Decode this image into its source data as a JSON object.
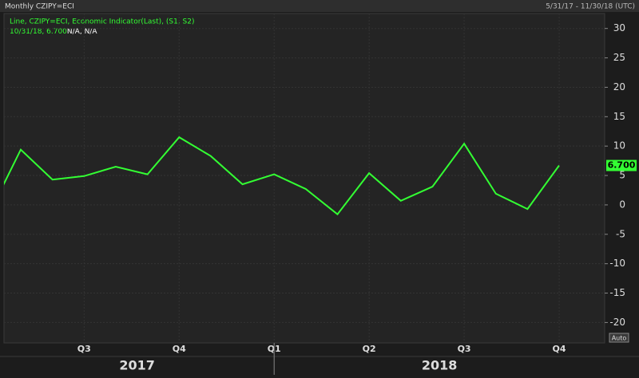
{
  "chart_data": {
    "type": "line",
    "title": "Monthly CZIPY=ECI",
    "date_range": "5/31/17 - 11/30/18 (UTC)",
    "legend_detail": "10/31/18, 6.700",
    "legend_extra": "N/A, N/A",
    "scale_button": "Auto",
    "years": [
      "2017",
      "2018"
    ],
    "categories": [
      null,
      null,
      null,
      "Q3",
      null,
      null,
      "Q4",
      null,
      null,
      "Q1",
      null,
      null,
      "Q2",
      null,
      null,
      "Q3",
      null,
      null,
      "Q4"
    ],
    "series": [
      {
        "name": "Line, CZIPY=ECI, Economic Indicator(Last), (S1, S2)",
        "color": "#33ff33",
        "values": [
          -1.5,
          9.4,
          4.3,
          4.9,
          6.5,
          5.2,
          11.5,
          8.3,
          3.5,
          5.2,
          2.7,
          -1.6,
          5.4,
          0.7,
          3.1,
          10.4,
          1.9,
          -0.7,
          6.7
        ],
        "value_labels": [
          null,
          null,
          null,
          null,
          null,
          null,
          null,
          null,
          null,
          null,
          null,
          null,
          null,
          null,
          null,
          null,
          null,
          null,
          "6.700"
        ]
      }
    ],
    "ylim": [
      -23.2,
      32.4
    ],
    "yticks": [
      -20,
      -15,
      -10,
      -5,
      0,
      5,
      10,
      15,
      20,
      25,
      30
    ],
    "grid": true
  }
}
